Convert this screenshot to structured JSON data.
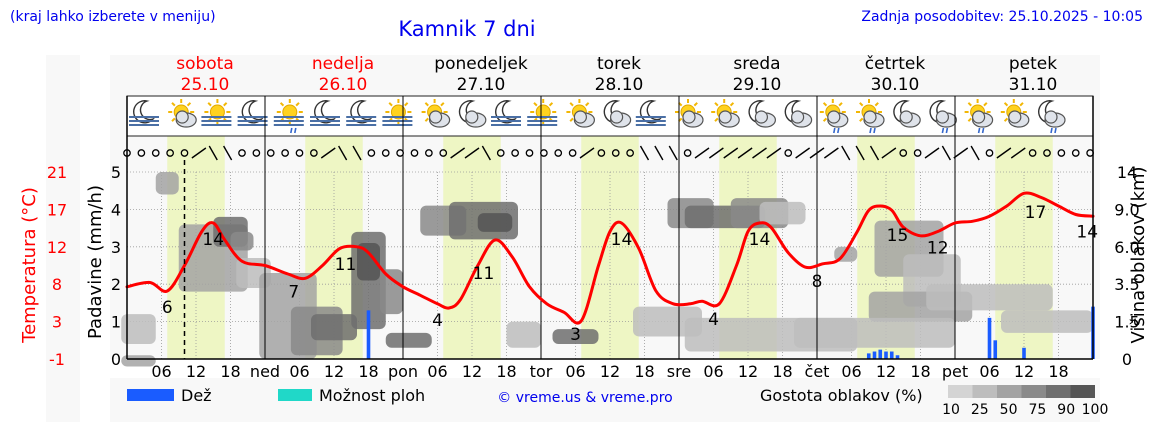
{
  "header": {
    "left_note": "(kraj lahko izberete v meniju)",
    "title": "Kamnik 7 dni",
    "updated": "Zadnja posodobitev: 25.10.2025 - 10:05"
  },
  "days": [
    {
      "name": "sobota",
      "date": "25.10",
      "weekend": true
    },
    {
      "name": "nedelja",
      "date": "26.10",
      "weekend": true
    },
    {
      "name": "ponedeljek",
      "date": "27.10",
      "weekend": false
    },
    {
      "name": "torek",
      "date": "28.10",
      "weekend": false
    },
    {
      "name": "sreda",
      "date": "29.10",
      "weekend": false
    },
    {
      "name": "četrtek",
      "date": "30.10",
      "weekend": false
    },
    {
      "name": "petek",
      "date": "31.10",
      "weekend": false
    }
  ],
  "x_ticks": [
    {
      "text": "06",
      "h": 6
    },
    {
      "text": "12",
      "h": 12
    },
    {
      "text": "18",
      "h": 18
    },
    {
      "text": "ned",
      "h": 24
    },
    {
      "text": "06",
      "h": 30
    },
    {
      "text": "12",
      "h": 36
    },
    {
      "text": "18",
      "h": 42
    },
    {
      "text": "pon",
      "h": 48
    },
    {
      "text": "06",
      "h": 54
    },
    {
      "text": "12",
      "h": 60
    },
    {
      "text": "18",
      "h": 66
    },
    {
      "text": "tor",
      "h": 72
    },
    {
      "text": "06",
      "h": 78
    },
    {
      "text": "12",
      "h": 84
    },
    {
      "text": "18",
      "h": 90
    },
    {
      "text": "sre",
      "h": 96
    },
    {
      "text": "06",
      "h": 102
    },
    {
      "text": "12",
      "h": 108
    },
    {
      "text": "18",
      "h": 114
    },
    {
      "text": "čet",
      "h": 120
    },
    {
      "text": "06",
      "h": 126
    },
    {
      "text": "12",
      "h": 132
    },
    {
      "text": "18",
      "h": 138
    },
    {
      "text": "pet",
      "h": 144
    },
    {
      "text": "06",
      "h": 150
    },
    {
      "text": "12",
      "h": 156
    },
    {
      "text": "18",
      "h": 162
    }
  ],
  "axes": {
    "left_outer_label": "Temperatura (°C)",
    "left_outer_ticks": [
      "21",
      "17",
      "12",
      "8",
      "3",
      "-1"
    ],
    "left_label": "Padavine (mm/h)",
    "left_ticks": [
      "5",
      "4",
      "3",
      "2",
      "1",
      "0"
    ],
    "right_label": "Višina oblakov (km)",
    "right_ticks": [
      "14",
      "9.0",
      "6.0",
      "3.5",
      "1.5",
      "0"
    ]
  },
  "legend": {
    "rain": "Dež",
    "storm": "Možnost ploh",
    "credit": "© vreme.us & vreme.pro",
    "density_title": "Gostota oblakov (%)",
    "density_levels": [
      "10",
      "25",
      "50",
      "75",
      "90",
      "100"
    ],
    "density_colors": [
      "#d4d4d4",
      "#bdbdbd",
      "#a3a3a3",
      "#8a8a8a",
      "#6f6f6f",
      "#555555"
    ]
  },
  "colors": {
    "temperature": "#ff0000",
    "rain": "#1a5cff",
    "storm": "#20d8c8",
    "daylight": "#eef6c4",
    "title": "#0000ee",
    "weekend": "#ff0000"
  },
  "icons": [
    "moon-fog",
    "sun-cloud",
    "sun-fog",
    "moon-fog",
    "sun-fog-drizzle",
    "moon-fog",
    "moon-fog",
    "sun-fog",
    "sun-cloud",
    "moon-cloud",
    "moon-fog",
    "sun-fog",
    "sun-cloud",
    "moon-cloud",
    "moon-fog",
    "sun-cloud",
    "sun-cloud",
    "moon-cloud",
    "moon-cloud",
    "sun-cloud-drizzle",
    "sun-cloud-drizzle",
    "moon-cloud",
    "moon-cloud-drizzle",
    "sun-cloud-drizzle",
    "sun-cloud",
    "moon-cloud-drizzle"
  ],
  "chart_data": {
    "type": "line",
    "title": "Kamnik 7 dni",
    "x_unit": "hours from 25.10 00:00",
    "now_marker_hour": 10,
    "xlim": [
      0,
      168
    ],
    "series": [
      {
        "kind": "temperature",
        "unit": "°C",
        "x": [
          0,
          4,
          7,
          10,
          13,
          15,
          17,
          20,
          24,
          28,
          31,
          34,
          37,
          40,
          42,
          45,
          48,
          51,
          54,
          56,
          58,
          61,
          64,
          67,
          70,
          73,
          76,
          79,
          82,
          84,
          86,
          89,
          92,
          95,
          98,
          100,
          103,
          106,
          108,
          110,
          112,
          115,
          118,
          121,
          124,
          127,
          129,
          131,
          133,
          135,
          138,
          141,
          144,
          147,
          150,
          153,
          156,
          159,
          162,
          165,
          168
        ],
        "y": [
          7.5,
          8,
          7,
          10,
          14,
          15,
          13,
          10.5,
          10,
          9,
          8.5,
          10,
          12,
          12.2,
          11.5,
          9,
          7.5,
          6.5,
          5.5,
          5,
          6,
          10,
          13,
          11,
          7.5,
          5.5,
          4.5,
          3.5,
          10,
          14,
          15,
          12,
          7,
          5.5,
          5.5,
          5.8,
          5.5,
          10,
          14,
          15,
          14.5,
          11.5,
          9.8,
          10.2,
          10.8,
          14,
          16.5,
          17,
          16.5,
          14.5,
          13.5,
          14,
          15,
          15.2,
          15.8,
          17,
          18.5,
          18,
          17,
          16,
          15.8
        ]
      },
      {
        "kind": "precipitation",
        "unit": "mm/h",
        "x": [
          42,
          129,
          130,
          131,
          132,
          133,
          134,
          150,
          151,
          156,
          168
        ],
        "y": [
          1.3,
          0.15,
          0.2,
          0.25,
          0.2,
          0.2,
          0.1,
          1.1,
          0.5,
          0.3,
          1.4
        ]
      }
    ],
    "temperature_labels": [
      {
        "h": 7,
        "value": "6"
      },
      {
        "h": 15,
        "value": "14"
      },
      {
        "h": 29,
        "value": "7"
      },
      {
        "h": 38,
        "value": "11"
      },
      {
        "h": 54,
        "value": "4"
      },
      {
        "h": 62,
        "value": "11"
      },
      {
        "h": 78,
        "value": "3"
      },
      {
        "h": 86,
        "value": "14"
      },
      {
        "h": 102,
        "value": "4"
      },
      {
        "h": 110,
        "value": "14"
      },
      {
        "h": 120,
        "value": "8"
      },
      {
        "h": 134,
        "value": "15"
      },
      {
        "h": 141,
        "value": "12"
      },
      {
        "h": 158,
        "value": "17"
      },
      {
        "h": 167,
        "value": "14"
      }
    ],
    "xlabel": "",
    "ylabel": "Padavine (mm/h)",
    "ylim": [
      0,
      5
    ],
    "y2label": "Temperatura (°C)",
    "y2lim": [
      -1,
      21
    ],
    "y3label": "Višina oblakov (km)",
    "y3_ticks": [
      "14",
      "9.0",
      "6.0",
      "3.5",
      "1.5",
      "0"
    ],
    "grid": true,
    "legend_position": "bottom"
  }
}
